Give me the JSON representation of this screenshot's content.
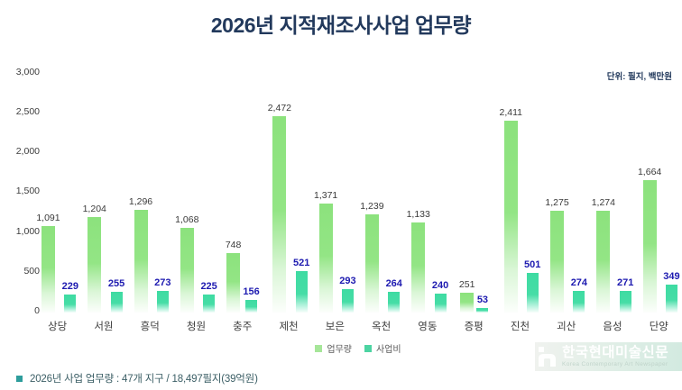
{
  "title": "2026년 지적재조사사업 업무량",
  "unit_label": "단위: 필지, 백만원",
  "legend": {
    "workload": "업무량",
    "cost": "사업비"
  },
  "footnote": "2026년 사업 업무량 : 47개 지구 / 18,497필지(39억원)",
  "watermark": {
    "title": "한국현대미술신문",
    "subtitle": "Korea Contemporary Art Newspaper"
  },
  "colors": {
    "title_navy": "#22395c",
    "workload_bar": "#8ce27d",
    "cost_bar": "#3edba2",
    "cost_value_label": "#1d1ab0",
    "workload_value_label": "#3a3a3a",
    "footnote_bullet": "#2e9d9c"
  },
  "chart_data": {
    "type": "bar",
    "categories": [
      "상당",
      "서원",
      "흥덕",
      "청원",
      "충주",
      "제천",
      "보은",
      "옥천",
      "영동",
      "증평",
      "진천",
      "괴산",
      "음성",
      "단양"
    ],
    "series": [
      {
        "name": "업무량",
        "values": [
          1091,
          1204,
          1296,
          1068,
          748,
          2472,
          1371,
          1239,
          1133,
          251,
          2411,
          1275,
          1274,
          1664
        ]
      },
      {
        "name": "사업비",
        "values": [
          229,
          255,
          273,
          225,
          156,
          521,
          293,
          264,
          240,
          53,
          501,
          274,
          271,
          349
        ]
      }
    ],
    "ylim": [
      0,
      3000
    ],
    "yticks": [
      0,
      500,
      1000,
      1500,
      2000,
      2500,
      3000
    ],
    "grid": false,
    "legend_position": "bottom",
    "value_labels": true
  }
}
